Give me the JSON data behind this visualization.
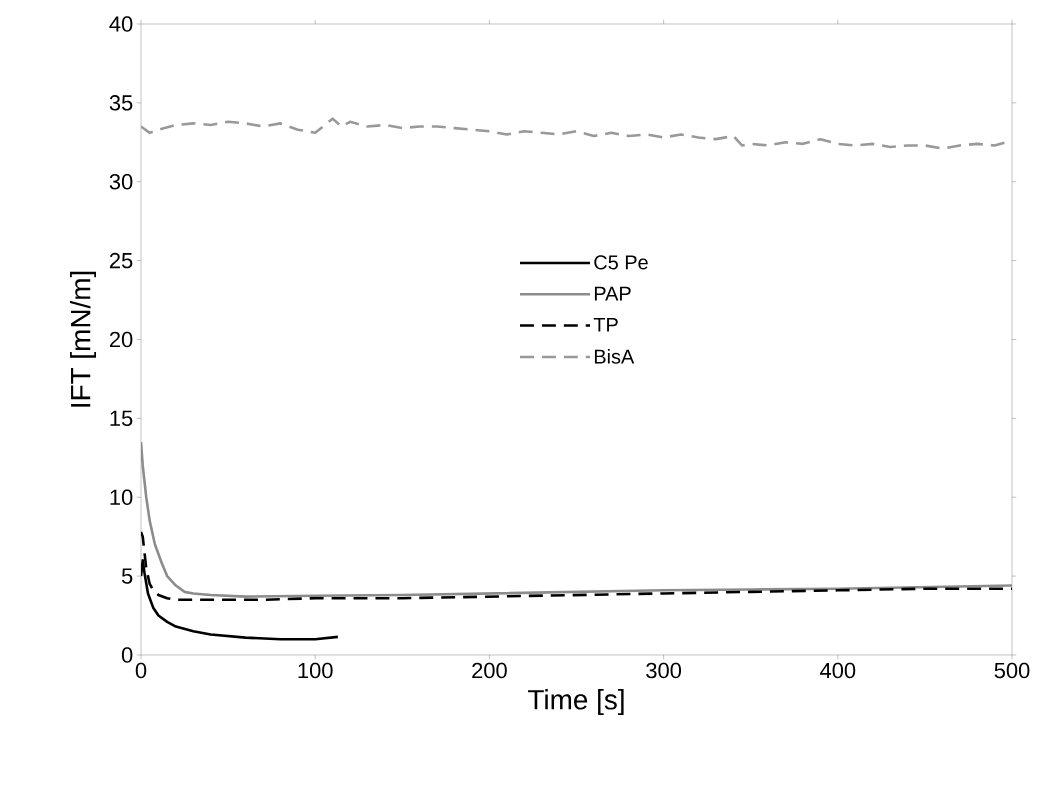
{
  "chart_data": {
    "type": "line",
    "xlabel": "Time [s]",
    "ylabel": "IFT [mN/m]",
    "xlim": [
      0,
      500
    ],
    "ylim": [
      0,
      40
    ],
    "xticks": [
      0,
      100,
      200,
      300,
      400,
      500
    ],
    "yticks": [
      0,
      5,
      10,
      15,
      20,
      25,
      30,
      35,
      40
    ],
    "grid": false,
    "legend": "center",
    "marker": "none",
    "series": [
      {
        "name": "C5 Pe",
        "color": "#000000",
        "line_style": "solid",
        "x": [
          0,
          1,
          2,
          4,
          7,
          10,
          15,
          20,
          30,
          40,
          50,
          60,
          80,
          100,
          113
        ],
        "values": [
          5.0,
          6.0,
          5.2,
          3.9,
          3.0,
          2.5,
          2.1,
          1.8,
          1.5,
          1.3,
          1.2,
          1.1,
          1.0,
          1.0,
          1.15
        ]
      },
      {
        "name": "PAP",
        "color": "#8c8c8c",
        "line_style": "solid",
        "x": [
          0,
          1,
          3,
          5,
          8,
          12,
          15,
          20,
          25,
          30,
          40,
          60,
          100,
          150,
          200,
          250,
          300,
          350,
          400,
          450,
          500
        ],
        "values": [
          13.5,
          12.0,
          10.0,
          8.5,
          7.0,
          5.8,
          5.0,
          4.4,
          4.0,
          3.9,
          3.8,
          3.7,
          3.75,
          3.8,
          3.9,
          4.0,
          4.1,
          4.15,
          4.2,
          4.3,
          4.4
        ]
      },
      {
        "name": "TP",
        "color": "#000000",
        "line_style": "dashed",
        "x": [
          0,
          1,
          2,
          3,
          5,
          7,
          10,
          15,
          20,
          40,
          70,
          100,
          150,
          200,
          250,
          300,
          350,
          400,
          450,
          500
        ],
        "values": [
          7.8,
          7.5,
          6.5,
          5.5,
          4.5,
          4.1,
          3.8,
          3.6,
          3.5,
          3.5,
          3.5,
          3.6,
          3.6,
          3.7,
          3.8,
          3.9,
          4.0,
          4.1,
          4.2,
          4.2
        ]
      },
      {
        "name": "BisA",
        "color": "#999999",
        "line_style": "dashed",
        "x": [
          0,
          5,
          10,
          20,
          30,
          40,
          50,
          60,
          70,
          80,
          90,
          100,
          110,
          115,
          120,
          130,
          140,
          150,
          160,
          170,
          180,
          190,
          200,
          210,
          220,
          230,
          240,
          250,
          260,
          270,
          280,
          290,
          300,
          310,
          320,
          330,
          340,
          345,
          350,
          360,
          370,
          380,
          390,
          400,
          410,
          420,
          430,
          440,
          450,
          460,
          470,
          480,
          490,
          500
        ],
        "values": [
          33.5,
          33.1,
          33.3,
          33.6,
          33.7,
          33.6,
          33.8,
          33.7,
          33.5,
          33.7,
          33.3,
          33.1,
          34.0,
          33.5,
          33.8,
          33.5,
          33.6,
          33.4,
          33.5,
          33.5,
          33.4,
          33.3,
          33.2,
          33.0,
          33.2,
          33.1,
          33.0,
          33.2,
          32.9,
          33.1,
          32.9,
          33.0,
          32.8,
          33.0,
          32.8,
          32.7,
          32.9,
          32.3,
          32.4,
          32.3,
          32.5,
          32.4,
          32.7,
          32.4,
          32.3,
          32.4,
          32.2,
          32.3,
          32.3,
          32.1,
          32.3,
          32.4,
          32.3,
          32.6
        ]
      }
    ]
  }
}
